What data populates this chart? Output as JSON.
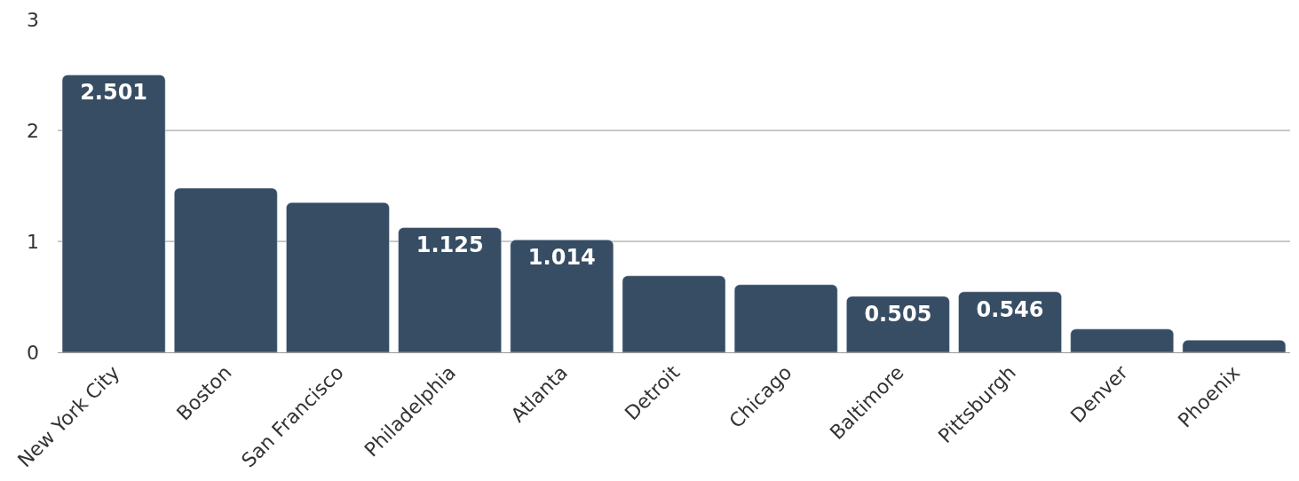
{
  "chart_data": {
    "type": "bar",
    "categories": [
      "New York City",
      "Boston",
      "San Francisco",
      "Philadelphia",
      "Atlanta",
      "Detroit",
      "Chicago",
      "Baltimore",
      "Pittsburgh",
      "Denver",
      "Phoenix"
    ],
    "values": [
      2.501,
      1.48,
      1.35,
      1.125,
      1.014,
      0.69,
      0.61,
      0.505,
      0.546,
      0.21,
      0.11
    ],
    "value_labels": [
      "2.501",
      null,
      null,
      "1.125",
      "1.014",
      null,
      null,
      "0.505",
      "0.546",
      null,
      null
    ],
    "color": "#374d63",
    "ylim": [
      0,
      3
    ],
    "yticks": [
      0,
      1,
      2,
      3
    ],
    "grid": "y",
    "legend": false
  }
}
